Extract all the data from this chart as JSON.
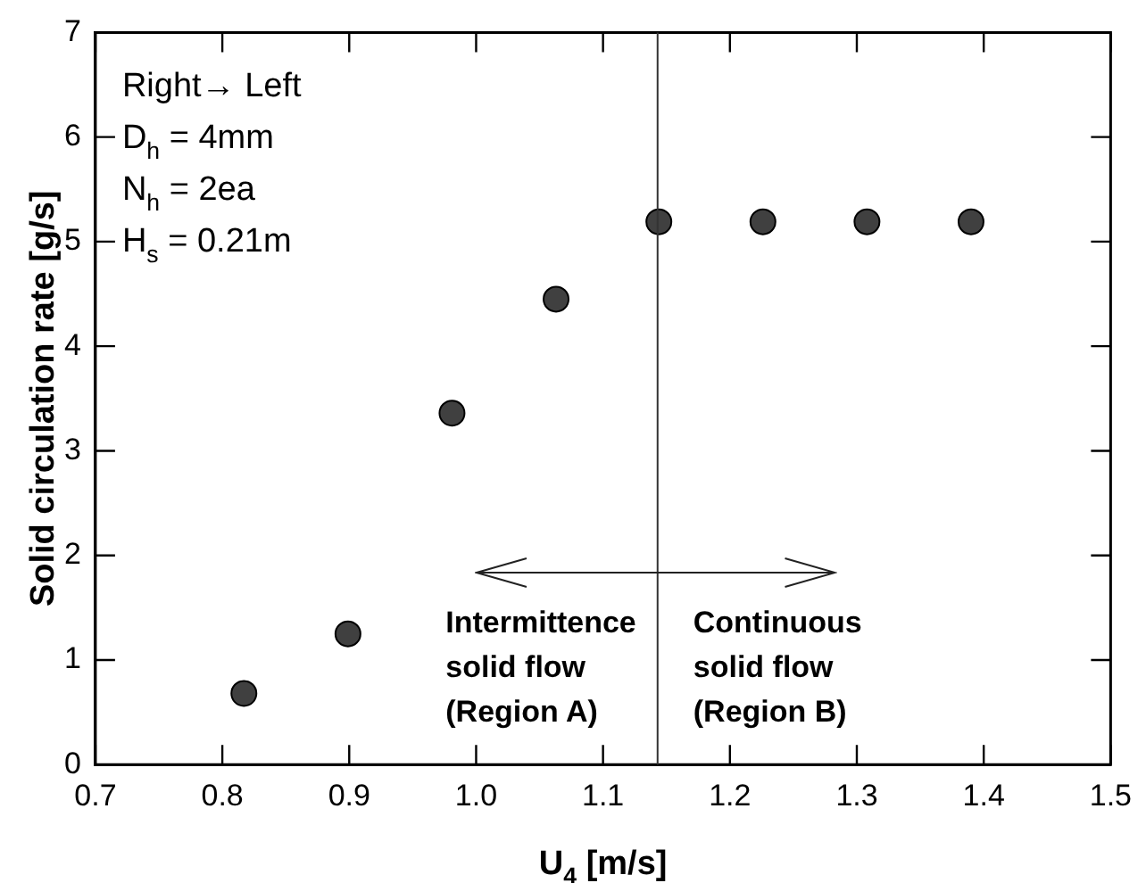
{
  "chart_data": {
    "type": "scatter",
    "xlabel": "U$_{4}$ [m/s]",
    "ylabel": "Solid circulation rate [g/s]",
    "x": [
      0.817,
      0.899,
      0.981,
      1.063,
      1.144,
      1.226,
      1.308,
      1.39
    ],
    "series": [
      {
        "color": "#404040",
        "values": [
          0.68,
          1.25,
          3.36,
          4.45,
          5.19,
          5.19,
          5.19,
          5.19
        ]
      }
    ],
    "xlim": [
      0.7,
      1.5
    ],
    "xticks": [
      0.7,
      0.8,
      0.9,
      {
        "value": 1,
        "label": "1.0"
      },
      1.1,
      1.2,
      1.3,
      1.4,
      1.5
    ],
    "ylim": [
      0,
      7
    ],
    "yticks": [
      0,
      1,
      2,
      3,
      4,
      5,
      6,
      7
    ],
    "ref_lines": [
      {
        "axis": "x",
        "value": 1.143,
        "color": "#333333"
      }
    ],
    "annotations": [
      "Right→ Left",
      "D$_{h}$ = 4mm",
      "N$_{h}$ = 2ea",
      "H$_{s}$ = 0.21m",
      "Intermittence\nsolid flow\n(Region A)",
      "Continuous\nsolid flow\n(Region B)"
    ],
    "marker": "circle",
    "grid": false,
    "legend": false
  }
}
